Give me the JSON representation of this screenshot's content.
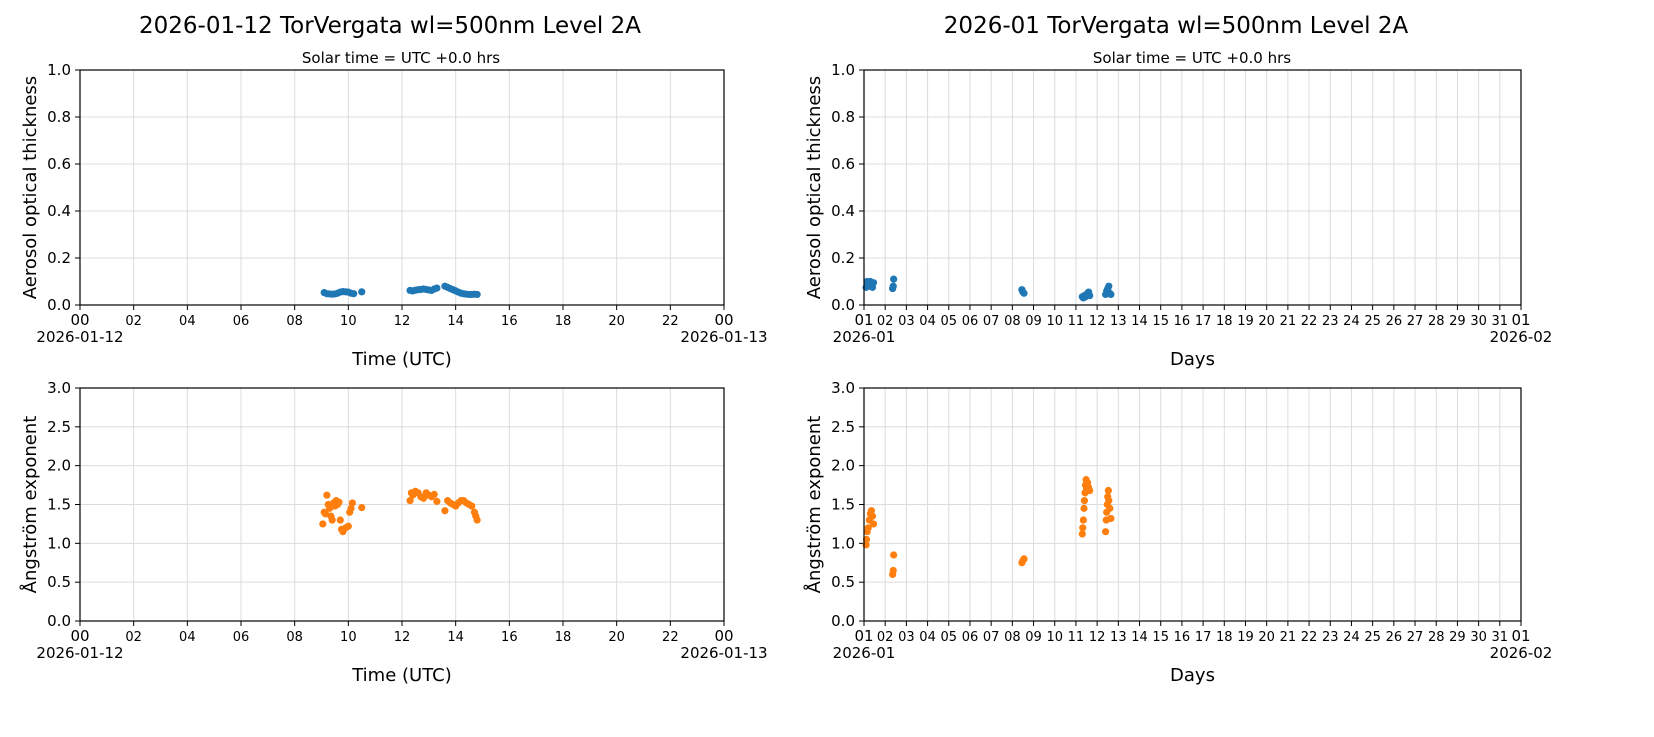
{
  "chart_data": [
    {
      "type": "scatter",
      "title": "2026-01-12  TorVergata  wl=500nm  Level 2A",
      "subtitle": "Solar time = UTC +0.0 hrs",
      "xlabel": "Time (UTC)",
      "ylabel": "Aerosol optical thickness",
      "xlim": [
        0,
        24
      ],
      "ylim": [
        0,
        1.0
      ],
      "yticks": [
        "0.0",
        "0.2",
        "0.4",
        "0.6",
        "0.8",
        "1.0"
      ],
      "xticks": [
        "00",
        "02",
        "04",
        "06",
        "08",
        "10",
        "12",
        "14",
        "16",
        "18",
        "20",
        "22",
        "00"
      ],
      "xtick_dates": [
        "2026-01-12",
        "2026-01-13"
      ],
      "grid": true,
      "color": "#1f77b4",
      "points": [
        [
          9.1,
          0.053
        ],
        [
          9.2,
          0.048
        ],
        [
          9.3,
          0.047
        ],
        [
          9.4,
          0.046
        ],
        [
          9.5,
          0.047
        ],
        [
          9.6,
          0.05
        ],
        [
          9.7,
          0.055
        ],
        [
          9.8,
          0.057
        ],
        [
          9.9,
          0.056
        ],
        [
          10.0,
          0.055
        ],
        [
          10.1,
          0.05
        ],
        [
          10.2,
          0.048
        ],
        [
          10.5,
          0.056
        ],
        [
          12.3,
          0.062
        ],
        [
          12.4,
          0.06
        ],
        [
          12.5,
          0.063
        ],
        [
          12.6,
          0.065
        ],
        [
          12.7,
          0.066
        ],
        [
          12.8,
          0.068
        ],
        [
          12.9,
          0.066
        ],
        [
          13.0,
          0.064
        ],
        [
          13.1,
          0.062
        ],
        [
          13.2,
          0.068
        ],
        [
          13.3,
          0.072
        ],
        [
          13.6,
          0.08
        ],
        [
          13.7,
          0.075
        ],
        [
          13.8,
          0.07
        ],
        [
          13.9,
          0.065
        ],
        [
          14.0,
          0.06
        ],
        [
          14.1,
          0.055
        ],
        [
          14.2,
          0.05
        ],
        [
          14.3,
          0.048
        ],
        [
          14.4,
          0.046
        ],
        [
          14.5,
          0.045
        ],
        [
          14.6,
          0.045
        ],
        [
          14.7,
          0.046
        ],
        [
          14.8,
          0.045
        ]
      ]
    },
    {
      "type": "scatter",
      "title": "2026-01  TorVergata  wl=500nm  Level 2A",
      "subtitle": "Solar time = UTC +0.0 hrs",
      "xlabel": "Days",
      "ylabel": "Aerosol optical thickness",
      "xlim": [
        1,
        32
      ],
      "ylim": [
        0,
        1.0
      ],
      "yticks": [
        "0.0",
        "0.2",
        "0.4",
        "0.6",
        "0.8",
        "1.0"
      ],
      "xticks": [
        "01",
        "02",
        "03",
        "04",
        "05",
        "06",
        "07",
        "08",
        "09",
        "10",
        "11",
        "12",
        "13",
        "14",
        "15",
        "16",
        "17",
        "18",
        "19",
        "20",
        "21",
        "22",
        "23",
        "24",
        "25",
        "26",
        "27",
        "28",
        "29",
        "30",
        "31",
        "01"
      ],
      "xtick_dates": [
        "2026-01",
        "2026-02"
      ],
      "grid": true,
      "color": "#1f77b4",
      "points": [
        [
          1.1,
          0.075
        ],
        [
          1.15,
          0.1
        ],
        [
          1.2,
          0.09
        ],
        [
          1.25,
          0.08
        ],
        [
          1.3,
          0.1
        ],
        [
          1.35,
          0.085
        ],
        [
          1.4,
          0.075
        ],
        [
          1.45,
          0.095
        ],
        [
          2.35,
          0.07
        ],
        [
          2.38,
          0.08
        ],
        [
          2.4,
          0.11
        ],
        [
          8.45,
          0.065
        ],
        [
          8.5,
          0.055
        ],
        [
          8.55,
          0.05
        ],
        [
          11.3,
          0.035
        ],
        [
          11.35,
          0.03
        ],
        [
          11.4,
          0.04
        ],
        [
          11.45,
          0.035
        ],
        [
          11.5,
          0.045
        ],
        [
          11.55,
          0.05
        ],
        [
          11.6,
          0.055
        ],
        [
          11.65,
          0.04
        ],
        [
          12.4,
          0.045
        ],
        [
          12.45,
          0.06
        ],
        [
          12.5,
          0.07
        ],
        [
          12.55,
          0.08
        ],
        [
          12.6,
          0.05
        ],
        [
          12.65,
          0.045
        ]
      ]
    },
    {
      "type": "scatter",
      "xlabel": "Time (UTC)",
      "ylabel": "Ångström exponent",
      "xlim": [
        0,
        24
      ],
      "ylim": [
        0,
        3.0
      ],
      "yticks": [
        "0.0",
        "0.5",
        "1.0",
        "1.5",
        "2.0",
        "2.5",
        "3.0"
      ],
      "xticks": [
        "00",
        "02",
        "04",
        "06",
        "08",
        "10",
        "12",
        "14",
        "16",
        "18",
        "20",
        "22",
        "00"
      ],
      "xtick_dates": [
        "2026-01-12",
        "2026-01-13"
      ],
      "grid": true,
      "color": "#ff7f0e",
      "points": [
        [
          9.05,
          1.25
        ],
        [
          9.1,
          1.4
        ],
        [
          9.15,
          1.38
        ],
        [
          9.2,
          1.62
        ],
        [
          9.25,
          1.5
        ],
        [
          9.3,
          1.45
        ],
        [
          9.35,
          1.35
        ],
        [
          9.4,
          1.3
        ],
        [
          9.45,
          1.52
        ],
        [
          9.5,
          1.48
        ],
        [
          9.55,
          1.55
        ],
        [
          9.6,
          1.5
        ],
        [
          9.65,
          1.53
        ],
        [
          9.7,
          1.3
        ],
        [
          9.75,
          1.18
        ],
        [
          9.8,
          1.15
        ],
        [
          9.9,
          1.2
        ],
        [
          10.0,
          1.22
        ],
        [
          10.05,
          1.4
        ],
        [
          10.1,
          1.45
        ],
        [
          10.15,
          1.52
        ],
        [
          10.5,
          1.46
        ],
        [
          12.3,
          1.55
        ],
        [
          12.35,
          1.65
        ],
        [
          12.4,
          1.62
        ],
        [
          12.5,
          1.67
        ],
        [
          12.6,
          1.65
        ],
        [
          12.7,
          1.6
        ],
        [
          12.8,
          1.58
        ],
        [
          12.9,
          1.65
        ],
        [
          13.0,
          1.62
        ],
        [
          13.1,
          1.6
        ],
        [
          13.2,
          1.63
        ],
        [
          13.3,
          1.54
        ],
        [
          13.6,
          1.42
        ],
        [
          13.7,
          1.55
        ],
        [
          13.8,
          1.52
        ],
        [
          13.9,
          1.5
        ],
        [
          14.0,
          1.48
        ],
        [
          14.1,
          1.52
        ],
        [
          14.2,
          1.55
        ],
        [
          14.3,
          1.55
        ],
        [
          14.4,
          1.52
        ],
        [
          14.5,
          1.5
        ],
        [
          14.6,
          1.48
        ],
        [
          14.7,
          1.4
        ],
        [
          14.75,
          1.35
        ],
        [
          14.8,
          1.3
        ]
      ]
    },
    {
      "type": "scatter",
      "xlabel": "Days",
      "ylabel": "Ångström exponent",
      "xlim": [
        1,
        32
      ],
      "ylim": [
        0,
        3.0
      ],
      "yticks": [
        "0.0",
        "0.5",
        "1.0",
        "1.5",
        "2.0",
        "2.5",
        "3.0"
      ],
      "xticks": [
        "01",
        "02",
        "03",
        "04",
        "05",
        "06",
        "07",
        "08",
        "09",
        "10",
        "11",
        "12",
        "13",
        "14",
        "15",
        "16",
        "17",
        "18",
        "19",
        "20",
        "21",
        "22",
        "23",
        "24",
        "25",
        "26",
        "27",
        "28",
        "29",
        "30",
        "31",
        "01"
      ],
      "xtick_dates": [
        "2026-01",
        "2026-02"
      ],
      "grid": true,
      "color": "#ff7f0e",
      "points": [
        [
          1.1,
          0.98
        ],
        [
          1.12,
          1.05
        ],
        [
          1.15,
          1.15
        ],
        [
          1.2,
          1.2
        ],
        [
          1.25,
          1.3
        ],
        [
          1.3,
          1.38
        ],
        [
          1.35,
          1.42
        ],
        [
          1.4,
          1.35
        ],
        [
          1.45,
          1.25
        ],
        [
          2.35,
          0.6
        ],
        [
          2.38,
          0.65
        ],
        [
          2.4,
          0.85
        ],
        [
          8.45,
          0.75
        ],
        [
          8.5,
          0.78
        ],
        [
          8.55,
          0.8
        ],
        [
          11.3,
          1.12
        ],
        [
          11.32,
          1.2
        ],
        [
          11.35,
          1.3
        ],
        [
          11.38,
          1.45
        ],
        [
          11.4,
          1.55
        ],
        [
          11.43,
          1.65
        ],
        [
          11.45,
          1.75
        ],
        [
          11.48,
          1.82
        ],
        [
          11.5,
          1.7
        ],
        [
          11.55,
          1.78
        ],
        [
          11.6,
          1.72
        ],
        [
          11.65,
          1.68
        ],
        [
          12.4,
          1.15
        ],
        [
          12.43,
          1.3
        ],
        [
          12.45,
          1.4
        ],
        [
          12.48,
          1.5
        ],
        [
          12.5,
          1.6
        ],
        [
          12.53,
          1.68
        ],
        [
          12.55,
          1.55
        ],
        [
          12.6,
          1.45
        ],
        [
          12.65,
          1.32
        ]
      ]
    }
  ]
}
